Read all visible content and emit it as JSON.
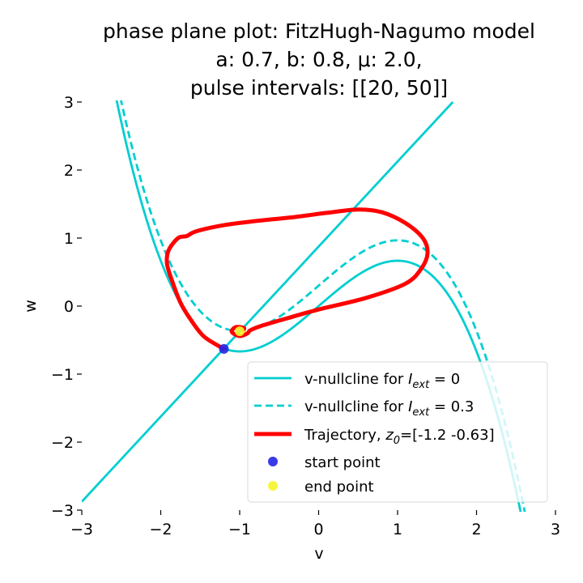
{
  "chart_data": {
    "type": "line",
    "title": [
      "phase plane plot: FitzHugh-Nagumo model",
      "a: 0.7, b: 0.8, μ: 2.0,",
      "pulse intervals: [[20, 50]]"
    ],
    "xlabel": "v",
    "ylabel": "w",
    "xlim": [
      -3,
      3
    ],
    "ylim": [
      -3,
      3
    ],
    "xticks": [
      -3,
      -2,
      -1,
      0,
      1,
      2,
      3
    ],
    "yticks": [
      -3,
      -2,
      -1,
      0,
      1,
      2,
      3
    ],
    "xtick_labels": [
      "−3",
      "−2",
      "−1",
      "0",
      "1",
      "2",
      "3"
    ],
    "ytick_labels": [
      "−3",
      "−2",
      "−1",
      "0",
      "1",
      "2",
      "3"
    ],
    "grid": false,
    "legend_position": "lower-right",
    "legend": [
      {
        "label": "v-nullcline for ",
        "math": "I",
        "sub": "ext",
        "suffix": " = 0",
        "style": "solid",
        "color": "#00ced1"
      },
      {
        "label": "v-nullcline for ",
        "math": "I",
        "sub": "ext",
        "suffix": " = 0.3",
        "style": "dashed",
        "color": "#00ced1"
      },
      {
        "label": "Trajectory, ",
        "math": "z",
        "sub": "0",
        "suffix": "=[-1.2  -0.63]",
        "style": "thick",
        "color": "#ff0000"
      },
      {
        "label": "start point",
        "style": "dot",
        "color": "#2323e6"
      },
      {
        "label": "end point",
        "style": "dot",
        "color": "#f5f52a"
      }
    ],
    "series": [
      {
        "name": "v-nullcline for I_ext = 0",
        "kind": "cubic",
        "color": "#00ced1",
        "style": "solid",
        "I_ext": 0,
        "formula": "w = v - v^3/3 + I_ext",
        "x_range": [
          -2.56,
          2.56
        ]
      },
      {
        "name": "v-nullcline for I_ext = 0.3",
        "kind": "cubic",
        "color": "#00ced1",
        "style": "dashed",
        "I_ext": 0.3,
        "formula": "w = v - v^3/3 + I_ext",
        "x_range": [
          -2.51,
          2.62
        ]
      },
      {
        "name": "w-nullcline",
        "kind": "line",
        "color": "#00ced1",
        "style": "solid",
        "formula": "w = (v + 0.7) / 0.8",
        "x_range": [
          -3,
          1.7
        ]
      },
      {
        "name": "Trajectory, z0=[-1.2  -0.63]",
        "kind": "path",
        "color": "#ff0000",
        "style": "thick",
        "points": [
          [
            -1.2,
            -0.63
          ],
          [
            -1.45,
            -0.45
          ],
          [
            -1.62,
            -0.2
          ],
          [
            -1.75,
            0.05
          ],
          [
            -1.85,
            0.35
          ],
          [
            -1.92,
            0.62
          ],
          [
            -1.9,
            0.82
          ],
          [
            -1.78,
            1.0
          ],
          [
            -1.67,
            1.03
          ],
          [
            -1.55,
            1.1
          ],
          [
            -1.2,
            1.19
          ],
          [
            -0.8,
            1.25
          ],
          [
            -0.3,
            1.31
          ],
          [
            0.1,
            1.37
          ],
          [
            0.5,
            1.42
          ],
          [
            0.8,
            1.38
          ],
          [
            1.1,
            1.22
          ],
          [
            1.32,
            1.0
          ],
          [
            1.38,
            0.78
          ],
          [
            1.3,
            0.55
          ],
          [
            1.1,
            0.33
          ],
          [
            0.6,
            0.12
          ],
          [
            0.0,
            -0.05
          ],
          [
            -0.4,
            -0.18
          ],
          [
            -0.75,
            -0.3
          ],
          [
            -0.87,
            -0.36
          ],
          [
            -0.9,
            -0.4
          ],
          [
            -1.0,
            -0.44
          ],
          [
            -1.1,
            -0.38
          ],
          [
            -1.05,
            -0.31
          ],
          [
            -0.95,
            -0.32
          ],
          [
            -0.95,
            -0.35
          ]
        ]
      },
      {
        "name": "start point",
        "kind": "point",
        "color": "#2323e6",
        "points": [
          [
            -1.2,
            -0.63
          ]
        ]
      },
      {
        "name": "end point",
        "kind": "point",
        "color": "#f5f52a",
        "points": [
          [
            -1.0,
            -0.37
          ]
        ]
      }
    ]
  }
}
